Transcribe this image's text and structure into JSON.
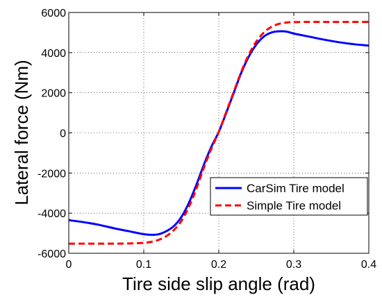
{
  "chart_data": {
    "type": "line",
    "xlabel": "Tire side slip angle (rad)",
    "ylabel": "Lateral force (Nm)",
    "xlim": [
      0,
      0.4
    ],
    "ylim": [
      -6000,
      6000
    ],
    "xticks": [
      0,
      0.1,
      0.2,
      0.3,
      0.4
    ],
    "xtick_labels": [
      "0",
      "0.1",
      "0.2",
      "0.3",
      "0.4"
    ],
    "yticks": [
      -6000,
      -4000,
      -2000,
      0,
      2000,
      4000,
      6000
    ],
    "ytick_labels": [
      "-6000",
      "-4000",
      "-2000",
      "0",
      "2000",
      "4000",
      "6000"
    ],
    "grid": true,
    "legend_position": "bottom-right",
    "series": [
      {
        "name": "CarSim Tire model",
        "color": "#0000ff",
        "style": "solid",
        "x": [
          0,
          0.02,
          0.04,
          0.06,
          0.08,
          0.1,
          0.11,
          0.12,
          0.13,
          0.14,
          0.15,
          0.16,
          0.17,
          0.18,
          0.19,
          0.2,
          0.21,
          0.22,
          0.23,
          0.24,
          0.25,
          0.26,
          0.27,
          0.28,
          0.29,
          0.3,
          0.32,
          0.34,
          0.36,
          0.38,
          0.4
        ],
        "y": [
          -4350,
          -4450,
          -4580,
          -4750,
          -4900,
          -5050,
          -5080,
          -5050,
          -4900,
          -4650,
          -4200,
          -3500,
          -2600,
          -1600,
          -700,
          50,
          1000,
          2000,
          3000,
          3800,
          4400,
          4800,
          5000,
          5060,
          5050,
          4950,
          4800,
          4650,
          4520,
          4420,
          4350
        ]
      },
      {
        "name": "Simple Tire model",
        "color": "#ff0000",
        "style": "dashed",
        "x": [
          0,
          0.02,
          0.04,
          0.06,
          0.08,
          0.1,
          0.11,
          0.12,
          0.13,
          0.14,
          0.15,
          0.16,
          0.17,
          0.18,
          0.19,
          0.2,
          0.21,
          0.22,
          0.23,
          0.24,
          0.25,
          0.26,
          0.27,
          0.28,
          0.29,
          0.3,
          0.32,
          0.34,
          0.36,
          0.38,
          0.4
        ],
        "y": [
          -5520,
          -5520,
          -5520,
          -5520,
          -5510,
          -5480,
          -5430,
          -5330,
          -5150,
          -4850,
          -4400,
          -3700,
          -2800,
          -1750,
          -800,
          50,
          1050,
          2050,
          3050,
          3900,
          4550,
          5000,
          5280,
          5430,
          5500,
          5520,
          5530,
          5530,
          5530,
          5530,
          5530
        ]
      }
    ]
  }
}
